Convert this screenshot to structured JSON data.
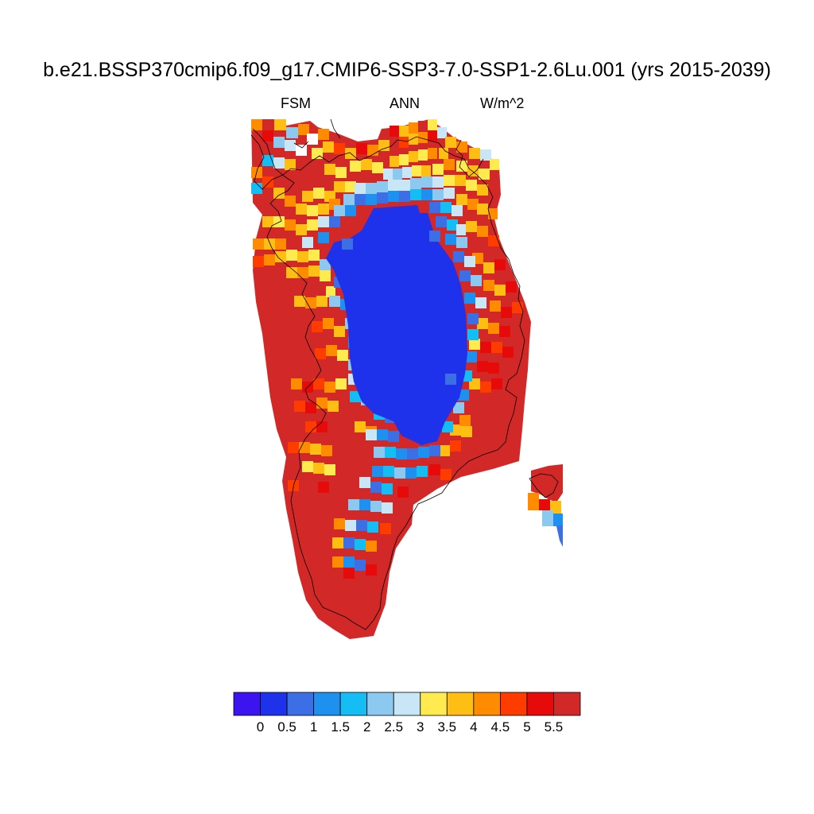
{
  "title": "b.e21.BSSP370cmip6.f09_g17.CMIP6-SSP3-7.0-SSP1-2.6Lu.001 (yrs 2015-2039)",
  "left_label": "FSM",
  "center_label": "ANN",
  "right_label": "W/m^2",
  "colorbar": {
    "colors": [
      "#3c14f0",
      "#1e32eb",
      "#3c6ee6",
      "#1e90f0",
      "#14bef5",
      "#8cc8f0",
      "#c8e6f5",
      "#ffeb50",
      "#ffbe14",
      "#ff8c00",
      "#ff3c00",
      "#e60a0a",
      "#d22828"
    ],
    "labels": [
      "0",
      "0.5",
      "1",
      "1.5",
      "2",
      "2.5",
      "3",
      "3.5",
      "4",
      "4.5",
      "5",
      "5.5"
    ]
  }
}
